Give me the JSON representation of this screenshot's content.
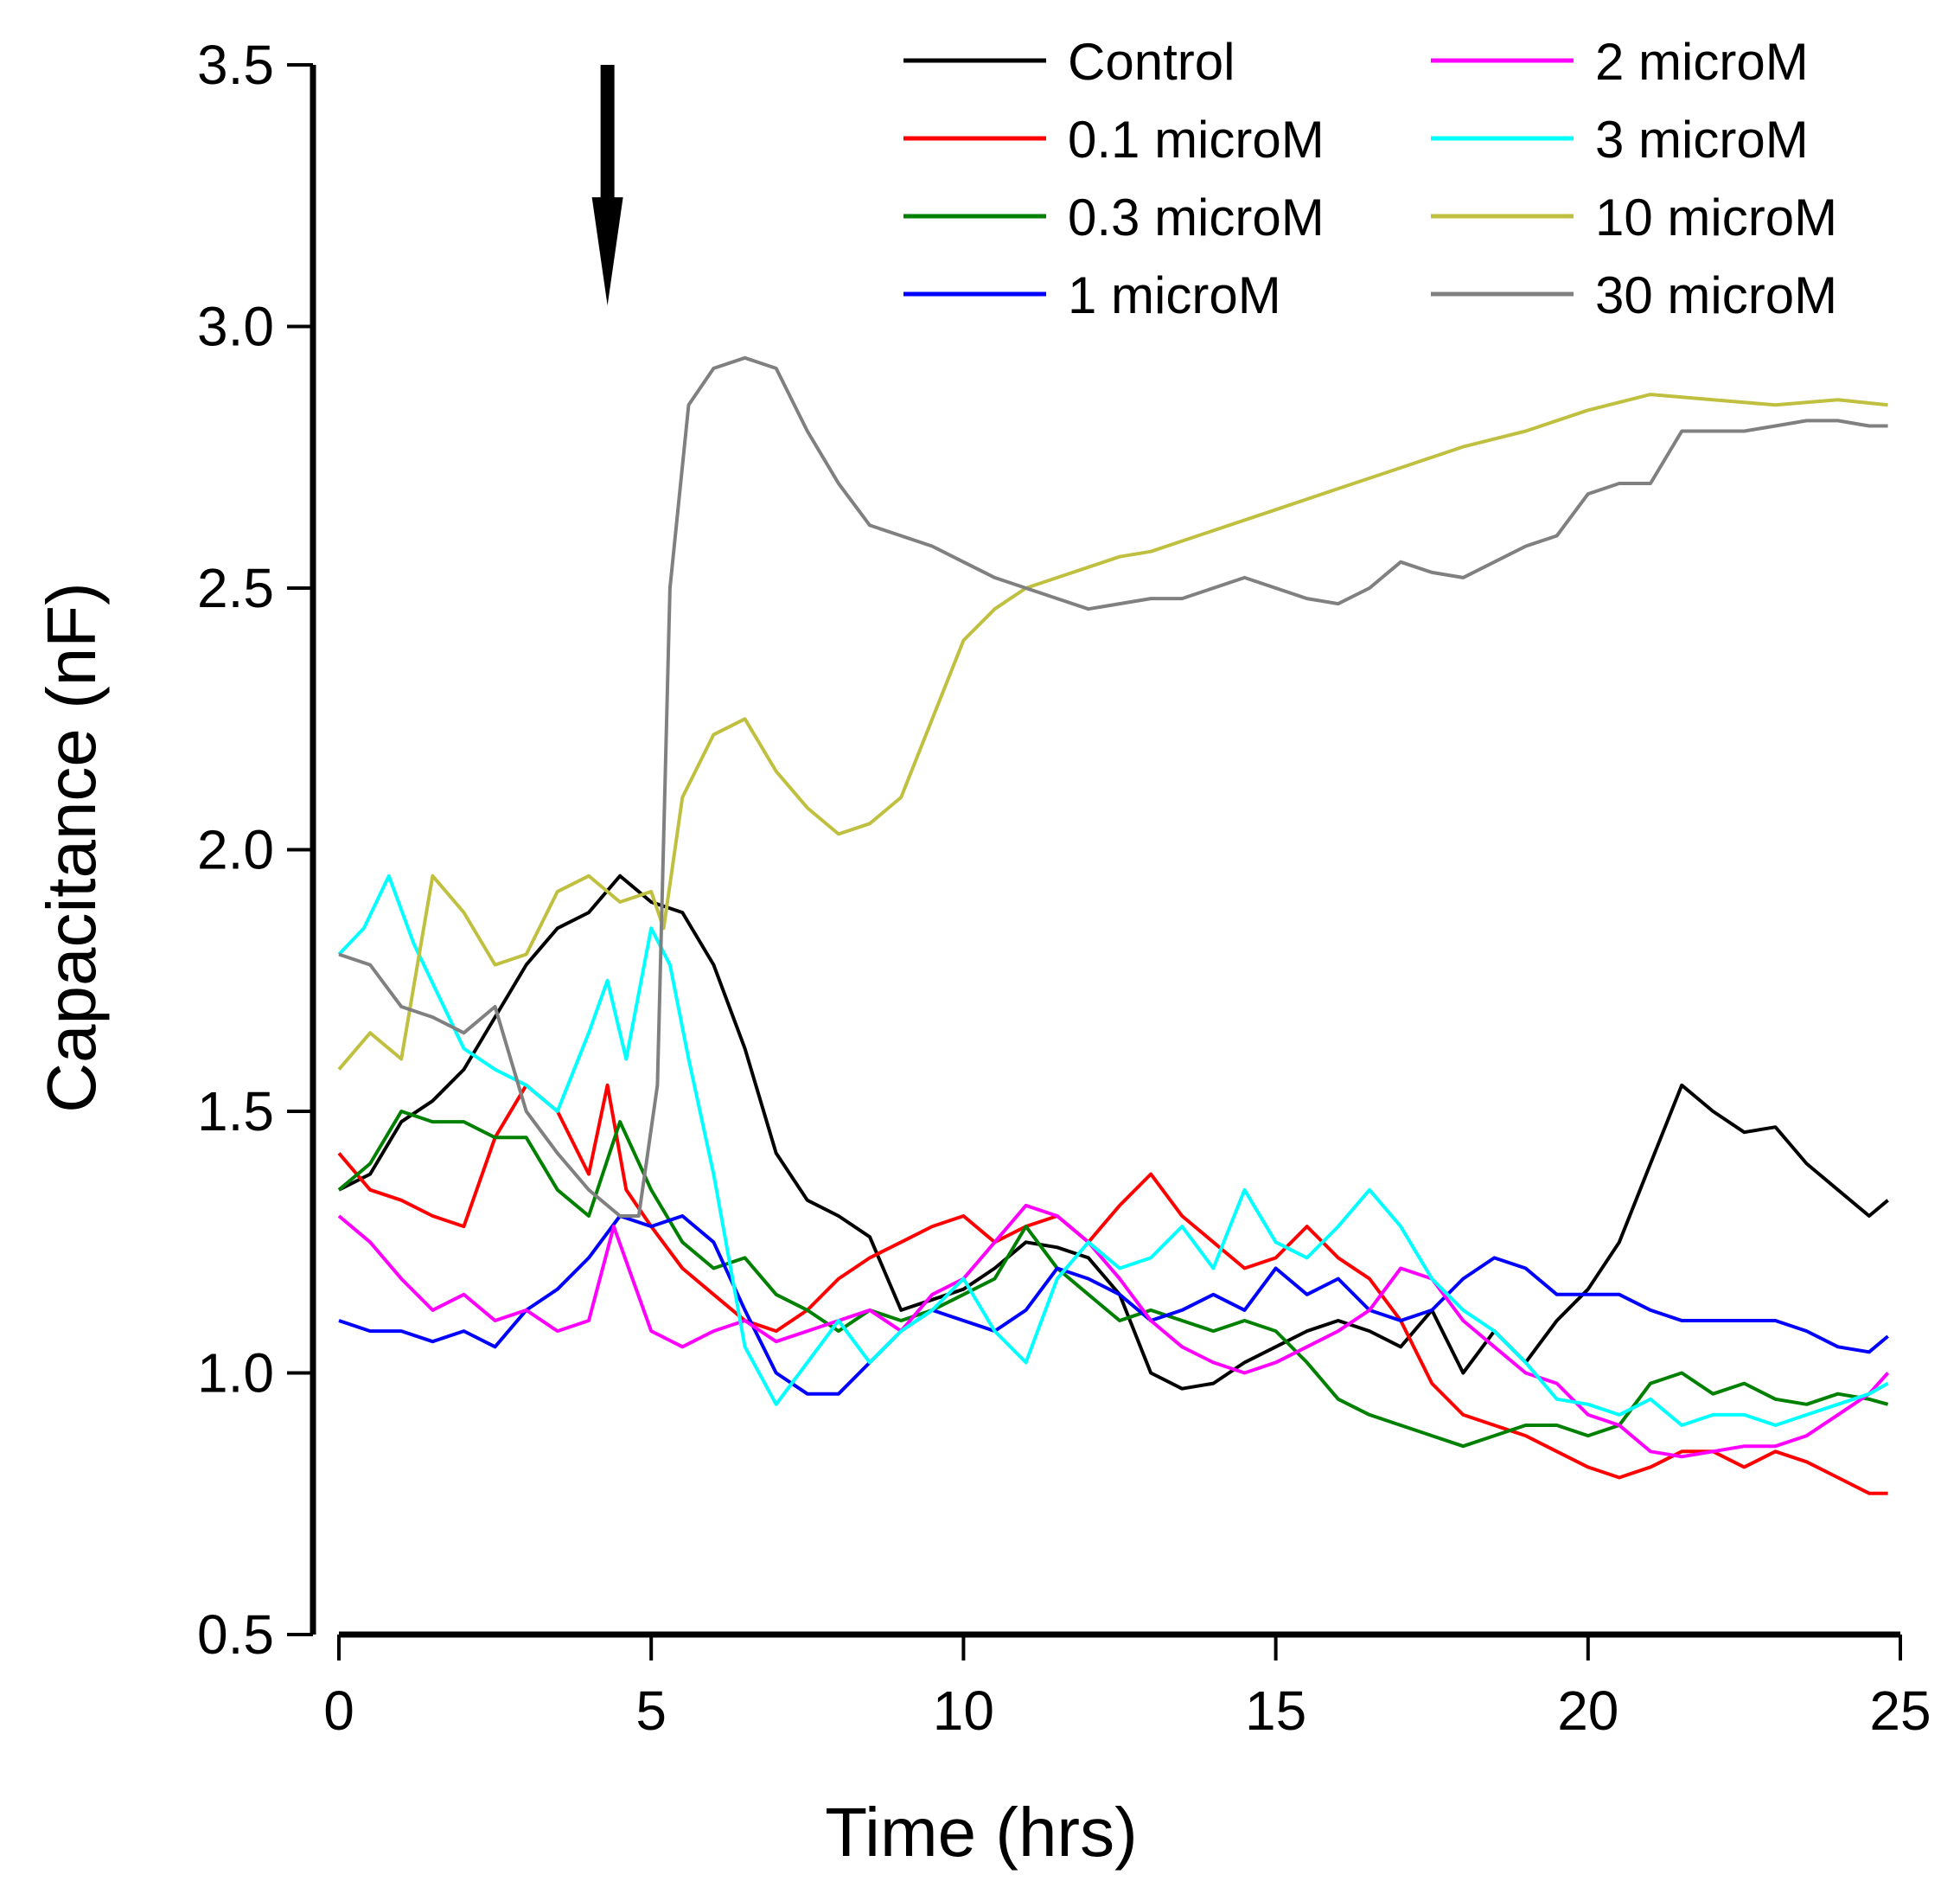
{
  "chart_data": {
    "type": "line",
    "title": "",
    "xlabel": "Time (hrs)",
    "ylabel": "Capacitance (nF)",
    "xlim": [
      0,
      25
    ],
    "ylim": [
      0.5,
      3.5
    ],
    "xticks": [
      "0",
      "5",
      "10",
      "15",
      "20",
      "25"
    ],
    "yticks": [
      "0.5",
      "1.0",
      "1.5",
      "2.0",
      "2.5",
      "3.0",
      "3.5"
    ],
    "grid": false,
    "legend_position": "top-right",
    "annotations": [
      {
        "type": "arrow-down",
        "x": 4.3,
        "y_from": 3.5,
        "y_to": 3.04
      }
    ],
    "series": [
      {
        "name": "Control",
        "color": "#000000",
        "x": [
          0,
          0.5,
          1,
          1.5,
          2,
          2.5,
          3,
          3.5,
          4,
          4.5,
          5,
          5.5,
          6,
          6.5,
          7,
          7.5,
          8,
          8.5,
          9,
          9.5,
          10,
          10.5,
          11,
          11.5,
          12,
          12.5,
          13,
          13.5,
          14,
          14.5,
          15,
          15.5,
          16,
          16.5,
          17,
          17.5,
          18,
          18.5,
          19,
          19.5,
          20,
          20.5,
          21,
          21.5,
          22,
          22.5,
          23,
          23.5,
          24,
          24.5,
          24.8
        ],
        "y": [
          1.35,
          1.38,
          1.48,
          1.52,
          1.58,
          1.68,
          1.78,
          1.85,
          1.88,
          1.95,
          1.9,
          1.88,
          1.78,
          1.62,
          1.42,
          1.33,
          1.3,
          1.26,
          1.12,
          1.14,
          1.16,
          1.2,
          1.25,
          1.24,
          1.22,
          1.15,
          1.0,
          0.97,
          0.98,
          1.02,
          1.05,
          1.08,
          1.1,
          1.08,
          1.05,
          1.12,
          1.0,
          1.08,
          1.02,
          1.1,
          1.16,
          1.25,
          1.4,
          1.55,
          1.5,
          1.46,
          1.47,
          1.4,
          1.35,
          1.3,
          1.33
        ]
      },
      {
        "name": "0.1 microM",
        "color": "#ff0000",
        "x": [
          0,
          0.5,
          1,
          1.5,
          2,
          2.5,
          3,
          3.5,
          4,
          4.3,
          4.6,
          5,
          5.5,
          6,
          6.5,
          7,
          7.5,
          8,
          8.5,
          9,
          9.5,
          10,
          10.5,
          11,
          11.5,
          12,
          12.5,
          13,
          13.5,
          14,
          14.5,
          15,
          15.5,
          16,
          16.5,
          17,
          17.5,
          18,
          18.5,
          19,
          19.5,
          20,
          20.5,
          21,
          21.5,
          22,
          22.5,
          23,
          23.5,
          24,
          24.5,
          24.8
        ],
        "y": [
          1.42,
          1.35,
          1.33,
          1.3,
          1.28,
          1.45,
          1.55,
          1.5,
          1.38,
          1.55,
          1.35,
          1.28,
          1.2,
          1.15,
          1.1,
          1.08,
          1.12,
          1.18,
          1.22,
          1.25,
          1.28,
          1.3,
          1.25,
          1.28,
          1.3,
          1.25,
          1.32,
          1.38,
          1.3,
          1.25,
          1.2,
          1.22,
          1.28,
          1.22,
          1.18,
          1.1,
          0.98,
          0.92,
          0.9,
          0.88,
          0.85,
          0.82,
          0.8,
          0.82,
          0.85,
          0.85,
          0.82,
          0.85,
          0.83,
          0.8,
          0.77,
          0.77
        ]
      },
      {
        "name": "0.3 microM",
        "color": "#008000",
        "x": [
          0,
          0.5,
          1,
          1.5,
          2,
          2.5,
          3,
          3.5,
          4,
          4.5,
          5,
          5.5,
          6,
          6.5,
          7,
          7.5,
          8,
          8.5,
          9,
          9.5,
          10,
          10.5,
          11,
          11.5,
          12,
          12.5,
          13,
          13.5,
          14,
          14.5,
          15,
          15.5,
          16,
          16.5,
          17,
          17.5,
          18,
          18.5,
          19,
          19.5,
          20,
          20.5,
          21,
          21.5,
          22,
          22.5,
          23,
          23.5,
          24,
          24.5,
          24.8
        ],
        "y": [
          1.35,
          1.4,
          1.5,
          1.48,
          1.48,
          1.45,
          1.45,
          1.35,
          1.3,
          1.48,
          1.35,
          1.25,
          1.2,
          1.22,
          1.15,
          1.12,
          1.08,
          1.12,
          1.1,
          1.12,
          1.15,
          1.18,
          1.28,
          1.2,
          1.15,
          1.1,
          1.12,
          1.1,
          1.08,
          1.1,
          1.08,
          1.02,
          0.95,
          0.92,
          0.9,
          0.88,
          0.86,
          0.88,
          0.9,
          0.9,
          0.88,
          0.9,
          0.98,
          1.0,
          0.96,
          0.98,
          0.95,
          0.94,
          0.96,
          0.95,
          0.94
        ]
      },
      {
        "name": "1 microM",
        "color": "#0000ff",
        "x": [
          0,
          0.5,
          1,
          1.5,
          2,
          2.5,
          3,
          3.5,
          4,
          4.5,
          5,
          5.5,
          6,
          6.5,
          7,
          7.5,
          8,
          8.5,
          9,
          9.5,
          10,
          10.5,
          11,
          11.5,
          12,
          12.5,
          13,
          13.5,
          14,
          14.5,
          15,
          15.5,
          16,
          16.5,
          17,
          17.5,
          18,
          18.5,
          19,
          19.5,
          20,
          20.5,
          21,
          21.5,
          22,
          22.5,
          23,
          23.5,
          24,
          24.5,
          24.8
        ],
        "y": [
          1.1,
          1.08,
          1.08,
          1.06,
          1.08,
          1.05,
          1.12,
          1.16,
          1.22,
          1.3,
          1.28,
          1.3,
          1.25,
          1.12,
          1.0,
          0.96,
          0.96,
          1.02,
          1.08,
          1.12,
          1.1,
          1.08,
          1.12,
          1.2,
          1.18,
          1.15,
          1.1,
          1.12,
          1.15,
          1.12,
          1.2,
          1.15,
          1.18,
          1.12,
          1.1,
          1.12,
          1.18,
          1.22,
          1.2,
          1.15,
          1.15,
          1.15,
          1.12,
          1.1,
          1.1,
          1.1,
          1.1,
          1.08,
          1.05,
          1.04,
          1.07
        ]
      },
      {
        "name": "2 microM",
        "color": "#ff00ff",
        "x": [
          0,
          0.5,
          1,
          1.5,
          2,
          2.5,
          3,
          3.5,
          4,
          4.4,
          4.7,
          5,
          5.5,
          6,
          6.5,
          7,
          7.5,
          8,
          8.5,
          9,
          9.5,
          10,
          10.5,
          11,
          11.5,
          12,
          12.5,
          13,
          13.5,
          14,
          14.5,
          15,
          15.5,
          16,
          16.5,
          17,
          17.5,
          18,
          18.5,
          19,
          19.5,
          20,
          20.5,
          21,
          21.5,
          22,
          22.5,
          23,
          23.5,
          24,
          24.5,
          24.8
        ],
        "y": [
          1.3,
          1.25,
          1.18,
          1.12,
          1.15,
          1.1,
          1.12,
          1.08,
          1.1,
          1.28,
          1.18,
          1.08,
          1.05,
          1.08,
          1.1,
          1.06,
          1.08,
          1.1,
          1.12,
          1.08,
          1.15,
          1.18,
          1.25,
          1.32,
          1.3,
          1.25,
          1.18,
          1.1,
          1.05,
          1.02,
          1.0,
          1.02,
          1.05,
          1.08,
          1.12,
          1.2,
          1.18,
          1.1,
          1.05,
          1.0,
          0.98,
          0.92,
          0.9,
          0.85,
          0.84,
          0.85,
          0.86,
          0.86,
          0.88,
          0.92,
          0.96,
          1.0
        ]
      },
      {
        "name": "3 microM",
        "color": "#00ffff",
        "x": [
          0,
          0.4,
          0.8,
          1.2,
          1.6,
          2,
          2.5,
          3,
          3.5,
          4,
          4.3,
          4.6,
          5,
          5.3,
          5.6,
          6,
          6.5,
          7,
          7.5,
          8,
          8.5,
          9,
          9.5,
          10,
          10.5,
          11,
          11.5,
          12,
          12.5,
          13,
          13.5,
          14,
          14.5,
          15,
          15.5,
          16,
          16.5,
          17,
          17.5,
          18,
          18.5,
          19,
          19.5,
          20,
          20.5,
          21,
          21.5,
          22,
          22.5,
          23,
          23.5,
          24,
          24.5,
          24.8
        ],
        "y": [
          1.8,
          1.85,
          1.95,
          1.82,
          1.72,
          1.62,
          1.58,
          1.55,
          1.5,
          1.65,
          1.75,
          1.6,
          1.85,
          1.78,
          1.6,
          1.38,
          1.05,
          0.94,
          1.02,
          1.1,
          1.02,
          1.08,
          1.12,
          1.18,
          1.08,
          1.02,
          1.18,
          1.25,
          1.2,
          1.22,
          1.28,
          1.2,
          1.35,
          1.25,
          1.22,
          1.28,
          1.35,
          1.28,
          1.18,
          1.12,
          1.08,
          1.02,
          0.95,
          0.94,
          0.92,
          0.95,
          0.9,
          0.92,
          0.92,
          0.9,
          0.92,
          0.94,
          0.96,
          0.98
        ]
      },
      {
        "name": "10 microM",
        "color": "#c0c040",
        "x": [
          0,
          0.5,
          1,
          1.5,
          2,
          2.5,
          3,
          3.5,
          4,
          4.5,
          5,
          5.2,
          5.5,
          6,
          6.5,
          7,
          7.5,
          8,
          8.5,
          9,
          9.5,
          10,
          10.5,
          11,
          11.5,
          12,
          12.5,
          13,
          14,
          15,
          16,
          17,
          18,
          19,
          20,
          21,
          22,
          23,
          24,
          24.8
        ],
        "y": [
          1.58,
          1.65,
          1.6,
          1.95,
          1.88,
          1.78,
          1.8,
          1.92,
          1.95,
          1.9,
          1.92,
          1.85,
          2.1,
          2.22,
          2.25,
          2.15,
          2.08,
          2.03,
          2.05,
          2.1,
          2.25,
          2.4,
          2.46,
          2.5,
          2.52,
          2.54,
          2.56,
          2.57,
          2.61,
          2.65,
          2.69,
          2.73,
          2.77,
          2.8,
          2.84,
          2.87,
          2.86,
          2.85,
          2.86,
          2.85
        ]
      },
      {
        "name": "30 microM",
        "color": "#808080",
        "x": [
          0,
          0.5,
          1,
          1.5,
          2,
          2.5,
          3,
          3.5,
          4,
          4.5,
          4.8,
          5.1,
          5.3,
          5.6,
          6,
          6.5,
          7,
          7.5,
          8,
          8.5,
          9,
          9.5,
          10,
          10.5,
          11,
          11.5,
          12,
          12.5,
          13,
          13.5,
          14,
          14.5,
          15,
          15.5,
          16,
          16.5,
          17,
          17.5,
          18,
          18.5,
          19,
          19.5,
          20,
          20.5,
          21,
          21.5,
          22,
          22.5,
          23,
          23.5,
          24,
          24.5,
          24.8
        ],
        "y": [
          1.8,
          1.78,
          1.7,
          1.68,
          1.65,
          1.7,
          1.5,
          1.42,
          1.35,
          1.3,
          1.3,
          1.55,
          2.5,
          2.85,
          2.92,
          2.94,
          2.92,
          2.8,
          2.7,
          2.62,
          2.6,
          2.58,
          2.55,
          2.52,
          2.5,
          2.48,
          2.46,
          2.47,
          2.48,
          2.48,
          2.5,
          2.52,
          2.5,
          2.48,
          2.47,
          2.5,
          2.55,
          2.53,
          2.52,
          2.55,
          2.58,
          2.6,
          2.68,
          2.7,
          2.7,
          2.8,
          2.8,
          2.8,
          2.81,
          2.82,
          2.82,
          2.81,
          2.81
        ]
      }
    ]
  }
}
